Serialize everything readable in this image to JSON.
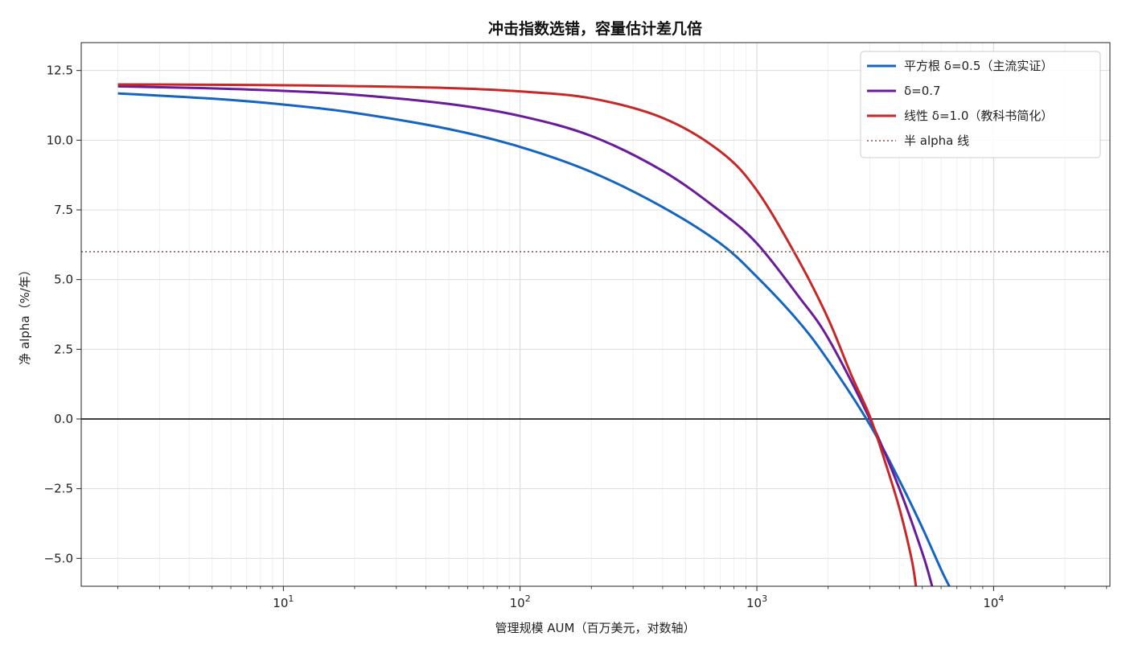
{
  "chart_data": {
    "type": "line",
    "title": "冲击指数选错，容量估计差几倍",
    "xlabel": "管理规模 AUM（百万美元，对数轴）",
    "ylabel": "净 alpha（%/年）",
    "x_scale": "log",
    "xlim": [
      1.4,
      31000
    ],
    "ylim": [
      -6.0,
      13.5
    ],
    "yticks": [
      12.5,
      10.0,
      7.5,
      5.0,
      2.5,
      0.0,
      -2.5,
      -5.0
    ],
    "ytick_labels": [
      "12.5",
      "10.0",
      "7.5",
      "5.0",
      "2.5",
      "0.0",
      "−2.5",
      "−5.0"
    ],
    "xticks": [
      {
        "base": "10",
        "exp": "1",
        "value": 10
      },
      {
        "base": "10",
        "exp": "2",
        "value": 100
      },
      {
        "base": "10",
        "exp": "3",
        "value": 1000
      },
      {
        "base": "10",
        "exp": "4",
        "value": 10000
      }
    ],
    "grid": true,
    "legend_position": "top-right",
    "series": [
      {
        "name": "平方根 δ=0.5（主流实证）",
        "color": "#1565c0",
        "x": [
          2,
          5,
          10,
          20,
          50,
          100,
          200,
          400,
          700,
          1000,
          1500,
          2000,
          3000,
          4000,
          5000,
          6000,
          6500
        ],
        "values": [
          11.68,
          11.49,
          11.28,
          10.98,
          10.4,
          9.76,
          8.86,
          7.6,
          6.3,
          5.1,
          3.5,
          2.1,
          -0.2,
          -2.2,
          -3.9,
          -5.4,
          -6.0
        ]
      },
      {
        "name": "δ=0.7",
        "color": "#6a1b9a",
        "x": [
          2,
          5,
          10,
          20,
          50,
          100,
          200,
          400,
          700,
          1000,
          1500,
          2000,
          3000,
          4000,
          5000,
          5500
        ],
        "values": [
          11.93,
          11.86,
          11.77,
          11.63,
          11.3,
          10.87,
          10.15,
          8.9,
          7.45,
          6.3,
          4.4,
          2.9,
          0.0,
          -2.5,
          -4.8,
          -6.0
        ]
      },
      {
        "name": "线性 δ=1.0（教科书简化）",
        "color": "#c62828",
        "x": [
          2,
          5,
          10,
          20,
          50,
          100,
          200,
          400,
          700,
          1000,
          1500,
          2000,
          2500,
          3000,
          3500,
          4000,
          4500,
          4700
        ],
        "values": [
          12.0,
          11.99,
          11.97,
          11.94,
          11.87,
          11.75,
          11.5,
          10.8,
          9.6,
          8.2,
          5.7,
          3.6,
          1.6,
          0.1,
          -1.6,
          -3.2,
          -5.0,
          -6.0
        ]
      },
      {
        "name": "半 alpha 线",
        "color": "#8d6e63",
        "style": "dotted",
        "x": [
          1.4,
          31000
        ],
        "values": [
          6.0,
          6.0
        ]
      }
    ],
    "reference_lines": [
      {
        "type": "horizontal",
        "y": 0.0,
        "color": "#000000"
      }
    ]
  }
}
